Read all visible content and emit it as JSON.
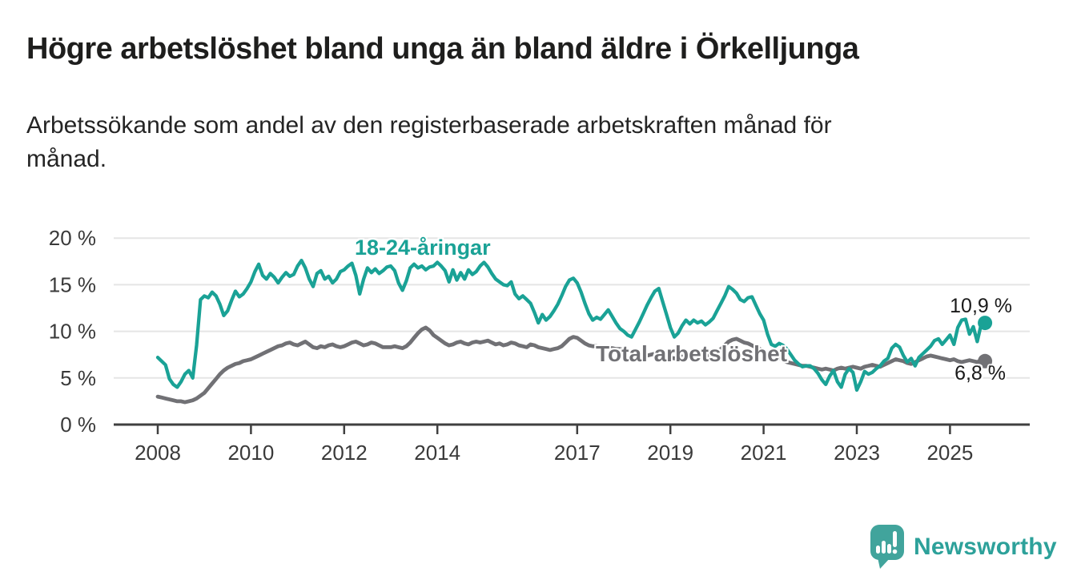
{
  "header": {
    "title": "Högre arbetslöshet bland unga än bland äldre i Örkelljunga",
    "subtitle_line1": "Arbetssökande som andel av den registerbaserade arbetskraften månad för",
    "subtitle_line2": "månad."
  },
  "chart_data": {
    "type": "line",
    "title": "Högre arbetslöshet bland unga än bland äldre i Örkelljunga",
    "unit": "%",
    "frequency": "monthly",
    "x_start_year": 2008,
    "ylim": [
      0,
      20
    ],
    "grid": true,
    "y_ticks": [
      {
        "label": "20 %",
        "value": 20
      },
      {
        "label": "15 %",
        "value": 15
      },
      {
        "label": "10 %",
        "value": 10
      },
      {
        "label": "5 %",
        "value": 5
      },
      {
        "label": "0 %",
        "value": 0
      }
    ],
    "x_ticks": [
      {
        "label": "2008"
      },
      {
        "label": "2010"
      },
      {
        "label": "2012"
      },
      {
        "label": "2014"
      },
      {
        "label": "2017"
      },
      {
        "label": "2019"
      },
      {
        "label": "2021"
      },
      {
        "label": "2023"
      },
      {
        "label": "2025"
      }
    ],
    "series": [
      {
        "id": "youth",
        "name": "18-24-åringar",
        "color": "#1aa296",
        "end_label": "10,9 %",
        "end_value": 10.9,
        "values": [
          7.2,
          6.8,
          6.4,
          4.9,
          4.3,
          4.0,
          4.6,
          5.4,
          5.8,
          5.0,
          8.5,
          13.4,
          13.8,
          13.6,
          14.2,
          13.8,
          12.9,
          11.7,
          12.2,
          13.3,
          14.3,
          13.7,
          14.0,
          14.6,
          15.3,
          16.4,
          17.2,
          16.0,
          15.6,
          16.2,
          15.8,
          15.2,
          15.8,
          16.3,
          15.9,
          16.1,
          17.0,
          17.6,
          16.8,
          15.6,
          14.8,
          16.2,
          16.5,
          15.6,
          15.9,
          15.2,
          15.6,
          16.4,
          16.6,
          17.0,
          17.3,
          16.0,
          14.0,
          15.6,
          16.8,
          16.3,
          16.7,
          16.2,
          16.5,
          16.9,
          17.0,
          16.5,
          15.2,
          14.4,
          15.4,
          16.8,
          17.2,
          16.8,
          17.0,
          16.6,
          16.9,
          17.0,
          17.4,
          17.0,
          16.5,
          15.3,
          16.6,
          15.5,
          16.3,
          15.6,
          16.6,
          16.1,
          16.4,
          17.0,
          17.4,
          16.9,
          16.2,
          15.6,
          15.3,
          15.0,
          14.9,
          15.3,
          14.0,
          13.5,
          13.8,
          13.4,
          13.0,
          12.0,
          10.9,
          11.8,
          11.2,
          11.6,
          12.2,
          12.9,
          13.8,
          14.8,
          15.5,
          15.7,
          15.2,
          14.2,
          13.0,
          11.9,
          11.2,
          11.5,
          11.3,
          11.8,
          12.3,
          11.6,
          10.9,
          10.3,
          10.0,
          9.6,
          9.4,
          10.2,
          11.0,
          11.9,
          12.8,
          13.6,
          14.3,
          14.6,
          13.2,
          11.8,
          10.4,
          9.4,
          9.8,
          10.6,
          11.2,
          10.8,
          11.2,
          10.9,
          11.1,
          10.7,
          11.0,
          11.4,
          12.2,
          13.0,
          13.8,
          14.8,
          14.5,
          14.1,
          13.4,
          13.2,
          13.6,
          13.7,
          12.8,
          11.9,
          11.2,
          9.7,
          8.6,
          8.4,
          8.7,
          8.5,
          8.1,
          7.5,
          6.9,
          6.5,
          6.2,
          6.3,
          6.3,
          6.0,
          5.5,
          4.8,
          4.3,
          5.2,
          5.8,
          4.6,
          4.0,
          5.4,
          6.0,
          5.6,
          3.7,
          4.6,
          5.7,
          5.4,
          5.6,
          6.0,
          6.3,
          6.8,
          7.1,
          8.2,
          8.6,
          8.3,
          7.4,
          6.7,
          7.1,
          6.3,
          7.2,
          7.6,
          8.0,
          8.4,
          9.0,
          9.2,
          8.6,
          9.1,
          9.6,
          8.6,
          10.4,
          11.2,
          11.3,
          9.7,
          10.5,
          8.9,
          10.7,
          10.9
        ]
      },
      {
        "id": "total",
        "name": "Total arbetslöshet",
        "color": "#717175",
        "end_label": "6,8 %",
        "end_value": 6.8,
        "values": [
          3.0,
          2.9,
          2.8,
          2.7,
          2.6,
          2.5,
          2.5,
          2.4,
          2.5,
          2.6,
          2.8,
          3.1,
          3.4,
          3.9,
          4.4,
          4.9,
          5.4,
          5.8,
          6.1,
          6.3,
          6.5,
          6.6,
          6.8,
          6.9,
          7.0,
          7.2,
          7.4,
          7.6,
          7.8,
          8.0,
          8.2,
          8.4,
          8.5,
          8.7,
          8.8,
          8.6,
          8.5,
          8.7,
          8.9,
          8.6,
          8.3,
          8.2,
          8.4,
          8.3,
          8.5,
          8.6,
          8.4,
          8.3,
          8.4,
          8.6,
          8.8,
          8.9,
          8.7,
          8.5,
          8.6,
          8.8,
          8.7,
          8.5,
          8.3,
          8.3,
          8.3,
          8.4,
          8.3,
          8.2,
          8.4,
          8.8,
          9.3,
          9.8,
          10.2,
          10.4,
          10.1,
          9.6,
          9.3,
          9.0,
          8.7,
          8.5,
          8.6,
          8.8,
          8.9,
          8.7,
          8.6,
          8.8,
          8.9,
          8.8,
          8.9,
          9.0,
          8.8,
          8.6,
          8.7,
          8.5,
          8.6,
          8.8,
          8.7,
          8.5,
          8.4,
          8.3,
          8.6,
          8.5,
          8.3,
          8.2,
          8.1,
          8.0,
          8.1,
          8.2,
          8.4,
          8.8,
          9.2,
          9.4,
          9.3,
          9.0,
          8.7,
          8.5,
          8.4,
          8.4,
          8.3,
          8.3,
          8.2,
          8.2,
          8.1,
          8.1,
          8.0,
          7.9,
          7.8,
          7.7,
          7.6,
          7.5,
          7.4,
          7.5,
          7.6,
          7.5,
          7.4,
          7.3,
          7.2,
          7.1,
          7.2,
          7.3,
          7.2,
          7.1,
          7.2,
          7.3,
          7.4,
          7.3,
          7.4,
          7.5,
          7.8,
          8.1,
          8.5,
          8.9,
          9.1,
          9.2,
          9.0,
          8.8,
          8.7,
          8.5,
          8.3,
          8.1,
          7.9,
          7.7,
          7.5,
          7.3,
          7.1,
          6.9,
          6.7,
          6.6,
          6.5,
          6.4,
          6.3,
          6.3,
          6.2,
          6.1,
          6.0,
          5.9,
          6.0,
          5.9,
          5.8,
          6.0,
          6.1,
          6.0,
          6.1,
          6.2,
          6.1,
          6.0,
          6.2,
          6.3,
          6.4,
          6.3,
          6.2,
          6.4,
          6.6,
          6.8,
          7.0,
          6.9,
          6.8,
          6.6,
          6.5,
          6.7,
          6.9,
          7.1,
          7.3,
          7.4,
          7.3,
          7.2,
          7.1,
          7.0,
          6.9,
          7.0,
          6.8,
          6.7,
          6.8,
          6.9,
          6.8,
          6.7,
          6.9,
          6.8
        ]
      }
    ]
  },
  "footer": {
    "brand": "Newsworthy",
    "logo_icon": "speech-bubble-bar-chart-icon",
    "brand_color": "#2da19a",
    "logo_bubble_color": "#41a49c"
  }
}
